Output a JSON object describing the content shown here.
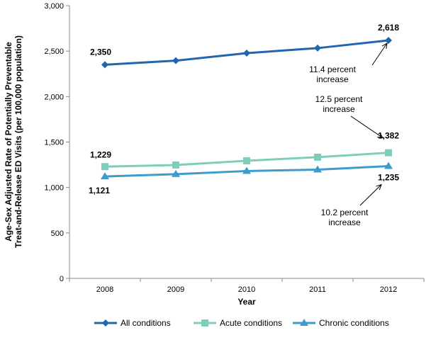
{
  "chart_data": {
    "type": "line",
    "title": "",
    "xlabel": "Year",
    "ylabel": "Age-Sex Adjusted Rate of Potentially Preventable Treat-and-Release ED Visits (per 100,000 population)",
    "ylabel_lines": [
      "Age-Sex Adjusted Rate of Potentially Preventable",
      "Treat-and-Release ED Visits (per 100,000 population)"
    ],
    "categories": [
      "2008",
      "2009",
      "2010",
      "2011",
      "2012"
    ],
    "ylim": [
      0,
      3000
    ],
    "yticks": [
      0,
      500,
      1000,
      1500,
      2000,
      2500,
      3000
    ],
    "ytick_labels": [
      "0",
      "500",
      "1,000",
      "1,500",
      "2,000",
      "2,500",
      "3,000"
    ],
    "grid": false,
    "legend_position": "bottom",
    "series": [
      {
        "name": "All conditions",
        "values": [
          2350,
          2395,
          2478,
          2533,
          2618
        ],
        "color": "#2166ac",
        "marker": "diamond",
        "labels": [
          "2,350",
          "2,618"
        ]
      },
      {
        "name": "Acute conditions",
        "values": [
          1229,
          1247,
          1294,
          1333,
          1382
        ],
        "color": "#7fcdbb",
        "marker": "square",
        "labels": [
          "1,229",
          "1,382"
        ]
      },
      {
        "name": "Chronic conditions",
        "values": [
          1121,
          1146,
          1181,
          1196,
          1235
        ],
        "color": "#3d9ccc",
        "marker": "triangle",
        "labels": [
          "1,121",
          "1,235"
        ]
      }
    ],
    "annotations": [
      {
        "lines": [
          "11.4 percent",
          "increase"
        ]
      },
      {
        "lines": [
          "12.5 percent",
          "increase"
        ]
      },
      {
        "lines": [
          "10.2 percent",
          "increase"
        ]
      }
    ]
  }
}
